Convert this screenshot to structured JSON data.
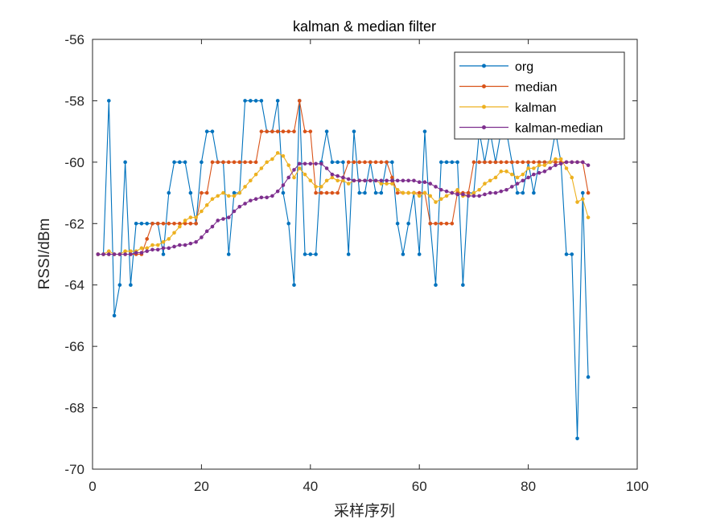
{
  "chart_data": {
    "type": "line",
    "title": "kalman & median filter",
    "xlabel": "采样序列",
    "ylabel": "RSSI/dBm",
    "xlim": [
      0,
      100
    ],
    "ylim": [
      -70,
      -56
    ],
    "xticks": [
      0,
      20,
      40,
      60,
      80,
      100
    ],
    "yticks": [
      -70,
      -68,
      -66,
      -64,
      -62,
      -60,
      -58,
      -56
    ],
    "xtick_labels": [
      "0",
      "20",
      "40",
      "60",
      "80",
      "100"
    ],
    "ytick_labels": [
      "-70",
      "-68",
      "-66",
      "-64",
      "-62",
      "-60",
      "-58",
      "-56"
    ],
    "grid": false,
    "legend_position": "top-right",
    "x": [
      1,
      2,
      3,
      4,
      5,
      6,
      7,
      8,
      9,
      10,
      11,
      12,
      13,
      14,
      15,
      16,
      17,
      18,
      19,
      20,
      21,
      22,
      23,
      24,
      25,
      26,
      27,
      28,
      29,
      30,
      31,
      32,
      33,
      34,
      35,
      36,
      37,
      38,
      39,
      40,
      41,
      42,
      43,
      44,
      45,
      46,
      47,
      48,
      49,
      50,
      51,
      52,
      53,
      54,
      55,
      56,
      57,
      58,
      59,
      60,
      61,
      62,
      63,
      64,
      65,
      66,
      67,
      68,
      69,
      70,
      71,
      72,
      73,
      74,
      75,
      76,
      77,
      78,
      79,
      80,
      81,
      82,
      83,
      84,
      85,
      86,
      87,
      88,
      89,
      90,
      91
    ],
    "series": [
      {
        "name": "org",
        "color": "#0072BD",
        "values": [
          -63,
          -63,
          -58,
          -65,
          -64,
          -60,
          -64,
          -62,
          -62,
          -62,
          -62,
          -62,
          -63,
          -61,
          -60,
          -60,
          -60,
          -61,
          -62,
          -60,
          -59,
          -59,
          -60,
          -60,
          -63,
          -61,
          -61,
          -58,
          -58,
          -58,
          -58,
          -59,
          -59,
          -58,
          -61,
          -62,
          -64,
          -58,
          -63,
          -63,
          -63,
          -60,
          -59,
          -60,
          -60,
          -60,
          -63,
          -59,
          -61,
          -61,
          -60,
          -61,
          -61,
          -60,
          -60,
          -62,
          -63,
          -62,
          -61,
          -63,
          -59,
          -62,
          -64,
          -60,
          -60,
          -60,
          -60,
          -64,
          -61,
          -61,
          -59,
          -60,
          -59,
          -60,
          -59,
          -59,
          -60,
          -61,
          -61,
          -60,
          -61,
          -60,
          -60,
          -60,
          -59,
          -60,
          -63,
          -63,
          -69,
          -61,
          -67
        ]
      },
      {
        "name": "median",
        "color": "#D95319",
        "values": [
          -63,
          -63,
          -63,
          -63,
          -63,
          -63,
          -63,
          -63,
          -63,
          -62.5,
          -62,
          -62,
          -62,
          -62,
          -62,
          -62,
          -62,
          -62,
          -62,
          -61,
          -61,
          -60,
          -60,
          -60,
          -60,
          -60,
          -60,
          -60,
          -60,
          -60,
          -59,
          -59,
          -59,
          -59,
          -59,
          -59,
          -59,
          -58,
          -59,
          -59,
          -61,
          -61,
          -61,
          -61,
          -61,
          -60.5,
          -60,
          -60,
          -60,
          -60,
          -60,
          -60,
          -60,
          -60,
          -60.5,
          -61,
          -61,
          -61,
          -61,
          -61,
          -61,
          -62,
          -62,
          -62,
          -62,
          -62,
          -61,
          -61,
          -61,
          -60,
          -60,
          -60,
          -60,
          -60,
          -60,
          -60,
          -60,
          -60,
          -60,
          -60,
          -60,
          -60,
          -60,
          -60,
          -60,
          -60,
          -60,
          -60,
          -60,
          -60,
          -61
        ]
      },
      {
        "name": "kalman",
        "color": "#EDB120",
        "values": [
          -63,
          -63,
          -62.9,
          -63,
          -63,
          -62.9,
          -62.9,
          -62.9,
          -62.8,
          -62.8,
          -62.7,
          -62.7,
          -62.6,
          -62.5,
          -62.3,
          -62.1,
          -61.9,
          -61.8,
          -61.8,
          -61.6,
          -61.4,
          -61.2,
          -61.1,
          -61,
          -61.1,
          -61.1,
          -61,
          -60.8,
          -60.6,
          -60.4,
          -60.2,
          -60,
          -59.9,
          -59.7,
          -59.8,
          -60.1,
          -60.5,
          -60.2,
          -60.4,
          -60.6,
          -60.8,
          -60.8,
          -60.6,
          -60.5,
          -60.6,
          -60.6,
          -60.7,
          -60.6,
          -60.6,
          -60.6,
          -60.6,
          -60.6,
          -60.7,
          -60.7,
          -60.7,
          -60.9,
          -61,
          -61,
          -61,
          -61.1,
          -61,
          -61.1,
          -61.3,
          -61.2,
          -61.1,
          -61,
          -60.9,
          -61.1,
          -61.1,
          -61,
          -60.9,
          -60.7,
          -60.6,
          -60.5,
          -60.3,
          -60.3,
          -60.4,
          -60.5,
          -60.4,
          -60.2,
          -60.2,
          -60.1,
          -60.1,
          -60,
          -59.9,
          -59.9,
          -60.2,
          -60.5,
          -61.3,
          -61.2,
          -61.8
        ]
      },
      {
        "name": "kalman-median",
        "color": "#7E2F8E",
        "values": [
          -63,
          -63,
          -63,
          -63,
          -63,
          -63,
          -63,
          -62.95,
          -62.95,
          -62.9,
          -62.85,
          -62.85,
          -62.8,
          -62.8,
          -62.75,
          -62.7,
          -62.7,
          -62.65,
          -62.6,
          -62.45,
          -62.25,
          -62.1,
          -61.9,
          -61.85,
          -61.8,
          -61.6,
          -61.45,
          -61.35,
          -61.25,
          -61.2,
          -61.15,
          -61.15,
          -61.1,
          -60.95,
          -60.75,
          -60.5,
          -60.25,
          -60.05,
          -60.05,
          -60.05,
          -60.05,
          -60.05,
          -60.2,
          -60.4,
          -60.45,
          -60.5,
          -60.55,
          -60.6,
          -60.6,
          -60.6,
          -60.6,
          -60.6,
          -60.6,
          -60.6,
          -60.6,
          -60.6,
          -60.6,
          -60.6,
          -60.6,
          -60.65,
          -60.65,
          -60.7,
          -60.8,
          -60.9,
          -60.95,
          -61,
          -61.05,
          -61.05,
          -61.1,
          -61.1,
          -61.1,
          -61.05,
          -61.0,
          -61.0,
          -60.95,
          -60.9,
          -60.8,
          -60.7,
          -60.6,
          -60.5,
          -60.4,
          -60.35,
          -60.3,
          -60.2,
          -60.1,
          -60.05,
          -60,
          -60,
          -60,
          -60,
          -60.1
        ]
      }
    ]
  }
}
